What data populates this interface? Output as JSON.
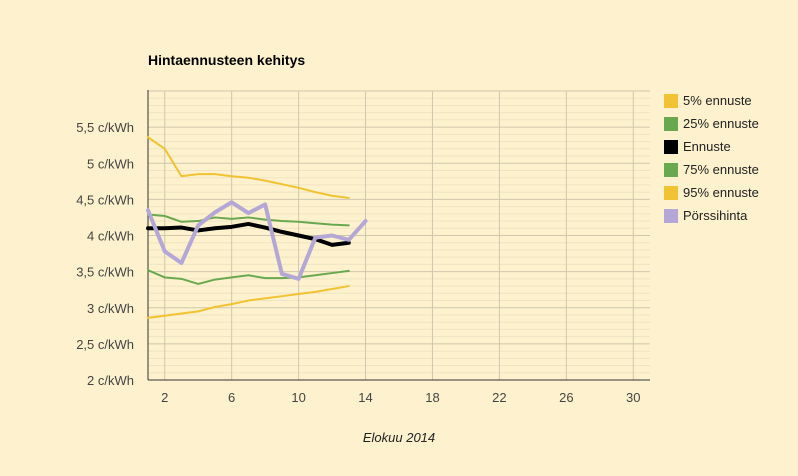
{
  "chart_data": {
    "type": "line",
    "title": "Hintaennusteen kehitys",
    "xlabel": "Elokuu 2014",
    "ylabel": "",
    "xlim": [
      1,
      31
    ],
    "ylim": [
      2,
      6
    ],
    "x_ticks": [
      2,
      6,
      10,
      14,
      18,
      22,
      26,
      30
    ],
    "y_ticks": [
      2,
      2.5,
      3,
      3.5,
      4,
      4.5,
      5,
      5.5
    ],
    "y_tick_labels": [
      "2 c/kWh",
      "2,5 c/kWh",
      "3 c/kWh",
      "3,5 c/kWh",
      "4 c/kWh",
      "4,5 c/kWh",
      "5 c/kWh",
      "5,5 c/kWh"
    ],
    "grid": true,
    "legend_position": "right",
    "series": [
      {
        "name": "5% ennuste",
        "color": "#f1c232",
        "width": 2,
        "x": [
          1,
          2,
          3,
          4,
          5,
          6,
          7,
          8,
          9,
          10,
          11,
          12,
          13
        ],
        "values": [
          5.36,
          5.2,
          4.82,
          4.85,
          4.85,
          4.82,
          4.8,
          4.76,
          4.71,
          4.66,
          4.6,
          4.55,
          4.52
        ]
      },
      {
        "name": "25% ennuste",
        "color": "#6aa84f",
        "width": 2,
        "x": [
          1,
          2,
          3,
          4,
          5,
          6,
          7,
          8,
          9,
          10,
          11,
          12,
          13
        ],
        "values": [
          4.29,
          4.27,
          4.19,
          4.2,
          4.25,
          4.23,
          4.25,
          4.22,
          4.2,
          4.19,
          4.17,
          4.15,
          4.14
        ]
      },
      {
        "name": "Ennuste",
        "color": "#000000",
        "width": 4,
        "x": [
          1,
          2,
          3,
          4,
          5,
          6,
          7,
          8,
          9,
          10,
          11,
          12,
          13
        ],
        "values": [
          4.1,
          4.1,
          4.11,
          4.07,
          4.1,
          4.12,
          4.16,
          4.11,
          4.05,
          4.0,
          3.95,
          3.87,
          3.9
        ]
      },
      {
        "name": "75% ennuste",
        "color": "#6aa84f",
        "width": 2,
        "x": [
          1,
          2,
          3,
          4,
          5,
          6,
          7,
          8,
          9,
          10,
          11,
          12,
          13
        ],
        "values": [
          3.52,
          3.42,
          3.4,
          3.33,
          3.39,
          3.42,
          3.45,
          3.41,
          3.41,
          3.42,
          3.45,
          3.48,
          3.51
        ]
      },
      {
        "name": "95% ennuste",
        "color": "#f1c232",
        "width": 2,
        "x": [
          1,
          2,
          3,
          4,
          5,
          6,
          7,
          8,
          9,
          10,
          11,
          12,
          13
        ],
        "values": [
          2.86,
          2.89,
          2.92,
          2.95,
          3.01,
          3.05,
          3.1,
          3.13,
          3.16,
          3.19,
          3.22,
          3.26,
          3.3
        ]
      },
      {
        "name": "Pörssihinta",
        "color": "#b4a7d6",
        "width": 4,
        "x": [
          1,
          2,
          3,
          4,
          5,
          6,
          7,
          8,
          9,
          10,
          11,
          12,
          13,
          14
        ],
        "values": [
          4.35,
          3.78,
          3.62,
          4.14,
          4.32,
          4.46,
          4.31,
          4.43,
          3.47,
          3.4,
          3.97,
          4.0,
          3.94,
          4.2
        ]
      }
    ]
  }
}
